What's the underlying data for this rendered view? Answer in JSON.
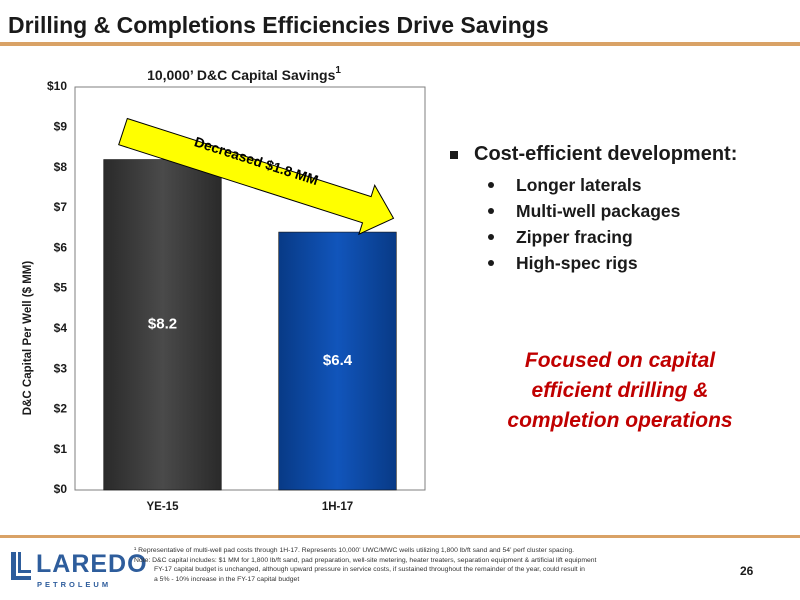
{
  "slide": {
    "title": "Drilling & Completions Efficiencies Drive Savings",
    "page_number": "26"
  },
  "chart_data": {
    "type": "bar",
    "title": "10,000’ D&C Capital Savings",
    "title_superscript": "1",
    "ylabel": "D&C Capital Per Well ($ MM)",
    "xlabel": "",
    "categories": [
      "YE-15",
      "1H-17"
    ],
    "values": [
      8.2,
      6.4
    ],
    "data_labels": [
      "$8.2",
      "$6.4"
    ],
    "bar_colors": [
      "#404040",
      "#0b4aa6"
    ],
    "ylim": [
      0,
      10
    ],
    "y_ticks": [
      "$0",
      "$1",
      "$2",
      "$3",
      "$4",
      "$5",
      "$6",
      "$7",
      "$8",
      "$9",
      "$10"
    ],
    "grid": false,
    "annotation": {
      "text": "Decreased $1.8 MM",
      "fill_color": "#ffff00",
      "direction": "down-right"
    }
  },
  "bullets": {
    "main": "Cost-efficient development:",
    "items": [
      "Longer laterals",
      "Multi-well packages",
      "Zipper fracing",
      "High-spec rigs"
    ]
  },
  "callout": {
    "lines": [
      "Focused on capital",
      "efficient drilling &",
      "completion operations"
    ],
    "color": "#c00000"
  },
  "footnotes": {
    "note1": "¹ Representative of multi-well pad costs through 1H-17. Represents 10,000’ UWC/MWC wells utilizing 1,800 lb/ft sand and 54’ perf cluster spacing.",
    "note2_lines": [
      "Note: D&C capital includes: $1 MM for 1,800 lb/ft sand, pad preparation, well-site metering, heater treaters, separation equipment & artificial lift equipment",
      "FY-17 capital budget is unchanged, although upward pressure in service costs, if sustained throughout the remainder of the year, could result in",
      "a 5% - 10% increase in the FY-17 capital budget"
    ]
  },
  "logo": {
    "name": "LAREDO",
    "subtitle": "PETROLEUM",
    "color": "#2e5d9c"
  }
}
